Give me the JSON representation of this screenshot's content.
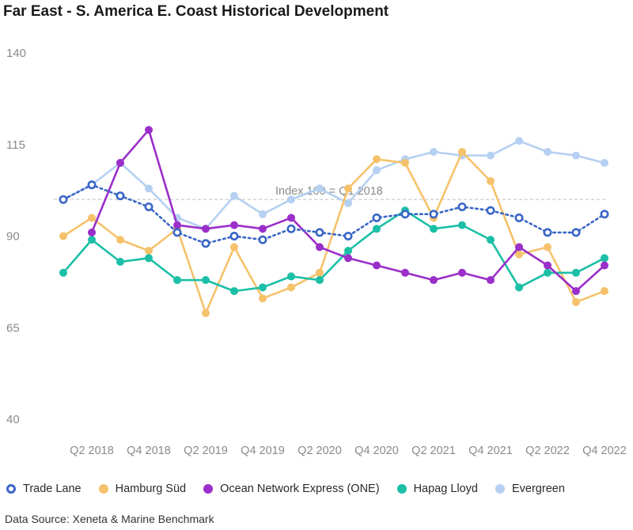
{
  "chart_data": {
    "type": "line",
    "title": "Far East - S. America E. Coast Historical Development",
    "categories": [
      "Q1 2018",
      "Q2 2018",
      "Q3 2018",
      "Q4 2018",
      "Q1 2019",
      "Q2 2019",
      "Q3 2019",
      "Q4 2019",
      "Q1 2020",
      "Q2 2020",
      "Q3 2020",
      "Q4 2020",
      "Q1 2021",
      "Q2 2021",
      "Q3 2021",
      "Q4 2021",
      "Q1 2022",
      "Q2 2022",
      "Q3 2022",
      "Q4 2022"
    ],
    "x_tick_labels": [
      "",
      "Q2 2018",
      "",
      "Q4 2018",
      "",
      "Q2 2019",
      "",
      "Q4 2019",
      "",
      "Q2 2020",
      "",
      "Q4 2020",
      "",
      "Q2 2021",
      "",
      "Q4 2021",
      "",
      "Q2 2022",
      "",
      "Q4 2022"
    ],
    "ylim": [
      40,
      140
    ],
    "yticks": [
      40,
      65,
      90,
      115,
      140
    ],
    "reference_line": {
      "value": 100,
      "label": "Index 100 = Q1 2018"
    },
    "series": [
      {
        "name": "Trade Lane",
        "color": "#3a66c6",
        "style": "dotted-hollow",
        "values": [
          100,
          104,
          101,
          98,
          91,
          88,
          90,
          89,
          92,
          91,
          90,
          95,
          96,
          96,
          98,
          97,
          95,
          91,
          91,
          96
        ]
      },
      {
        "name": "Hamburg Süd",
        "color": "#f5c26b",
        "style": "solid",
        "values": [
          90,
          95,
          89,
          86,
          92,
          69,
          87,
          73,
          76,
          80,
          103,
          111,
          110,
          95,
          113,
          105,
          85,
          87,
          72,
          75
        ]
      },
      {
        "name": "Ocean Network Express (ONE)",
        "color": "#9b2fc9",
        "style": "solid",
        "values": [
          null,
          91,
          110,
          119,
          93,
          92,
          93,
          92,
          95,
          87,
          84,
          82,
          80,
          78,
          80,
          78,
          87,
          82,
          75,
          82
        ]
      },
      {
        "name": "Hapag Lloyd",
        "color": "#1bbfa6",
        "style": "solid",
        "values": [
          80,
          89,
          83,
          84,
          78,
          78,
          75,
          76,
          79,
          78,
          86,
          92,
          97,
          92,
          93,
          89,
          76,
          80,
          80,
          84
        ]
      },
      {
        "name": "Evergreen",
        "color": "#b5d0f2",
        "style": "solid",
        "values": [
          100,
          104,
          110,
          103,
          95,
          92,
          101,
          96,
          100,
          103,
          99,
          108,
          111,
          113,
          112,
          112,
          116,
          113,
          112,
          110
        ]
      }
    ],
    "legend_position": "bottom",
    "grid": false
  },
  "source": "Data Source: Xeneta & Marine Benchmark"
}
